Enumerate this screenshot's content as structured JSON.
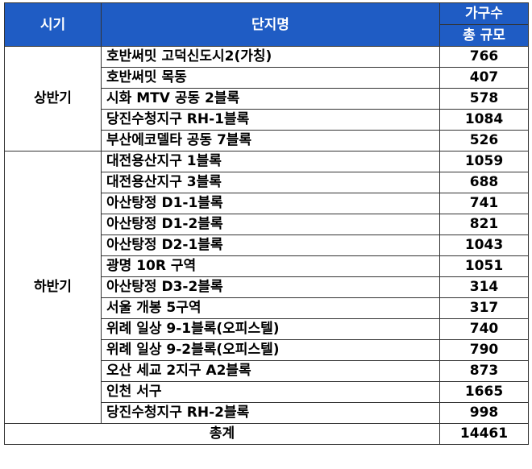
{
  "header": {
    "period": "시기",
    "name": "단지명",
    "units_top": "가구수",
    "units_bottom": "총 규모"
  },
  "groups": [
    {
      "period": "상반기",
      "rows": [
        {
          "name": "호반써밋 고덕신도시2(가칭)",
          "units": 766
        },
        {
          "name": "호반써밋 목동",
          "units": 407
        },
        {
          "name": "시화 MTV 공동 2블록",
          "units": 578
        },
        {
          "name": "당진수청지구 RH-1블록",
          "units": 1084
        },
        {
          "name": "부산에코델타 공동 7블록",
          "units": 526
        }
      ]
    },
    {
      "period": "하반기",
      "rows": [
        {
          "name": "대전용산지구 1블록",
          "units": 1059
        },
        {
          "name": "대전용산지구 3블록",
          "units": 688
        },
        {
          "name": "아산탕정 D1-1블록",
          "units": 741
        },
        {
          "name": "아산탕정 D1-2블록",
          "units": 821
        },
        {
          "name": "아산탕정 D2-1블록",
          "units": 1043
        },
        {
          "name": "광명 10R 구역",
          "units": 1051
        },
        {
          "name": "아산탕정 D3-2블록",
          "units": 314
        },
        {
          "name": "서울 개봉 5구역",
          "units": 317
        },
        {
          "name": "위례 일상 9-1블록(오피스텔)",
          "units": 740
        },
        {
          "name": "위례 일상 9-2블록(오피스텔)",
          "units": 790
        },
        {
          "name": "오산 세교 2지구 A2블록",
          "units": 873
        },
        {
          "name": "인천 서구",
          "units": 1665
        },
        {
          "name": "당진수청지구 RH-2블록",
          "units": 998
        }
      ]
    }
  ],
  "total": {
    "label": "총계",
    "units": 14461
  }
}
